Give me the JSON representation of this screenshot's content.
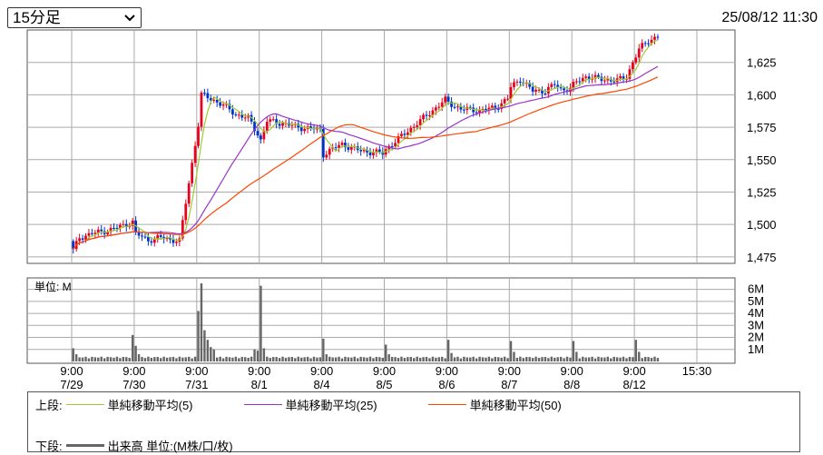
{
  "header": {
    "period_selected": "15分足",
    "datetime": "25/08/12 11:30"
  },
  "legend": {
    "upper_label": "上段:",
    "lower_label": "下段:",
    "ma5": "単純移動平均(5)",
    "ma25": "単純移動平均(25)",
    "ma50": "単純移動平均(50)",
    "volume": "出来高 単位:(M株/口/枚)",
    "colors": {
      "ma5": "#9acd32",
      "ma25": "#9932cc",
      "ma50": "#ff4500",
      "volume": "#666666"
    }
  },
  "chart_data": [
    {
      "type": "candlestick",
      "ylim": [
        1470,
        1650
      ],
      "y_ticks": [
        "1,475",
        "1,500",
        "1,525",
        "1,550",
        "1,575",
        "1,600",
        "1,625"
      ],
      "x_ticks": [
        {
          "time": "9:00",
          "date": "7/29"
        },
        {
          "time": "9:00",
          "date": "7/30"
        },
        {
          "time": "9:00",
          "date": "7/31"
        },
        {
          "time": "9:00",
          "date": "8/1"
        },
        {
          "time": "9:00",
          "date": "8/4"
        },
        {
          "time": "9:00",
          "date": "8/5"
        },
        {
          "time": "9:00",
          "date": "8/6"
        },
        {
          "time": "9:00",
          "date": "8/7"
        },
        {
          "time": "9:00",
          "date": "8/8"
        },
        {
          "time": "9:00",
          "date": "8/12"
        },
        {
          "time": "15:30",
          "date": ""
        }
      ],
      "price_path": [
        [
          0,
          1480
        ],
        [
          2,
          1490
        ],
        [
          6,
          1493
        ],
        [
          12,
          1496
        ],
        [
          17,
          1500
        ],
        [
          19,
          1502
        ],
        [
          20,
          1493
        ],
        [
          24,
          1488
        ],
        [
          28,
          1490
        ],
        [
          34,
          1487
        ],
        [
          40,
          1577
        ],
        [
          41,
          1600
        ],
        [
          44,
          1597
        ],
        [
          48,
          1592
        ],
        [
          52,
          1585
        ],
        [
          56,
          1582
        ],
        [
          59,
          1570
        ],
        [
          60,
          1565
        ],
        [
          62,
          1580
        ],
        [
          67,
          1578
        ],
        [
          72,
          1575
        ],
        [
          79,
          1573
        ],
        [
          80,
          1554
        ],
        [
          82,
          1557
        ],
        [
          86,
          1562
        ],
        [
          90,
          1558
        ],
        [
          94,
          1556
        ],
        [
          99,
          1555
        ],
        [
          100,
          1558
        ],
        [
          104,
          1566
        ],
        [
          108,
          1574
        ],
        [
          112,
          1582
        ],
        [
          116,
          1590
        ],
        [
          119,
          1596
        ],
        [
          120,
          1594
        ],
        [
          124,
          1589
        ],
        [
          130,
          1588
        ],
        [
          135,
          1590
        ],
        [
          139,
          1597
        ],
        [
          140,
          1606
        ],
        [
          143,
          1612
        ],
        [
          147,
          1603
        ],
        [
          151,
          1603
        ],
        [
          154,
          1608
        ],
        [
          156,
          1604
        ],
        [
          159,
          1605
        ],
        [
          161,
          1610
        ],
        [
          164,
          1614
        ],
        [
          169,
          1612
        ],
        [
          174,
          1611
        ],
        [
          177,
          1614
        ],
        [
          179,
          1625
        ],
        [
          181,
          1635
        ],
        [
          184,
          1642
        ],
        [
          187,
          1645
        ]
      ],
      "ma": [
        {
          "name": "単純移動平均(5)",
          "period": 5
        },
        {
          "name": "単純移動平均(25)",
          "period": 25
        },
        {
          "name": "単純移動平均(50)",
          "period": 50
        }
      ]
    },
    {
      "type": "bar",
      "unit_label": "単位: M",
      "ylim": [
        0,
        6.5
      ],
      "y_ticks": [
        "1M",
        "2M",
        "3M",
        "4M",
        "5M",
        "6M"
      ],
      "base_volume": 0.25,
      "spikes": [
        [
          0,
          1.1
        ],
        [
          1,
          0.6
        ],
        [
          19,
          2.2
        ],
        [
          20,
          1.3
        ],
        [
          21,
          0.6
        ],
        [
          40,
          4.2
        ],
        [
          41,
          6.5
        ],
        [
          42,
          2.6
        ],
        [
          43,
          1.8
        ],
        [
          44,
          1.2
        ],
        [
          45,
          1.0
        ],
        [
          58,
          1.0
        ],
        [
          59,
          0.9
        ],
        [
          60,
          6.3
        ],
        [
          61,
          1.1
        ],
        [
          80,
          1.9
        ],
        [
          81,
          0.6
        ],
        [
          100,
          1.4
        ],
        [
          101,
          0.6
        ],
        [
          120,
          1.8
        ],
        [
          121,
          0.7
        ],
        [
          140,
          1.7
        ],
        [
          141,
          0.8
        ],
        [
          160,
          1.7
        ],
        [
          161,
          0.8
        ],
        [
          180,
          1.8
        ],
        [
          181,
          0.8
        ]
      ]
    }
  ]
}
